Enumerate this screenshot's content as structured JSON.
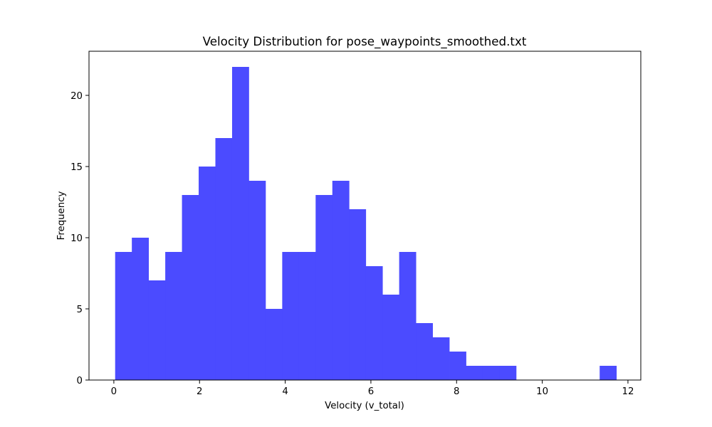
{
  "chart_data": {
    "type": "bar",
    "title": "Velocity Distribution for pose_waypoints_smoothed.txt",
    "xlabel": "Velocity (v_total)",
    "ylabel": "Frequency",
    "xlim": [
      -0.58,
      12.3
    ],
    "ylim": [
      0,
      23.1
    ],
    "xticks": [
      0,
      2,
      4,
      6,
      8,
      10,
      12
    ],
    "yticks": [
      0,
      5,
      10,
      15,
      20
    ],
    "bins": {
      "start": 0.03,
      "width": 0.39,
      "counts": [
        9,
        10,
        7,
        9,
        13,
        15,
        17,
        22,
        14,
        5,
        9,
        9,
        13,
        14,
        12,
        8,
        6,
        9,
        4,
        3,
        2,
        1,
        1,
        1,
        0,
        0,
        0,
        0,
        0,
        1
      ]
    },
    "bar_color": "#4b4bff",
    "grid": false,
    "legend": "none"
  }
}
